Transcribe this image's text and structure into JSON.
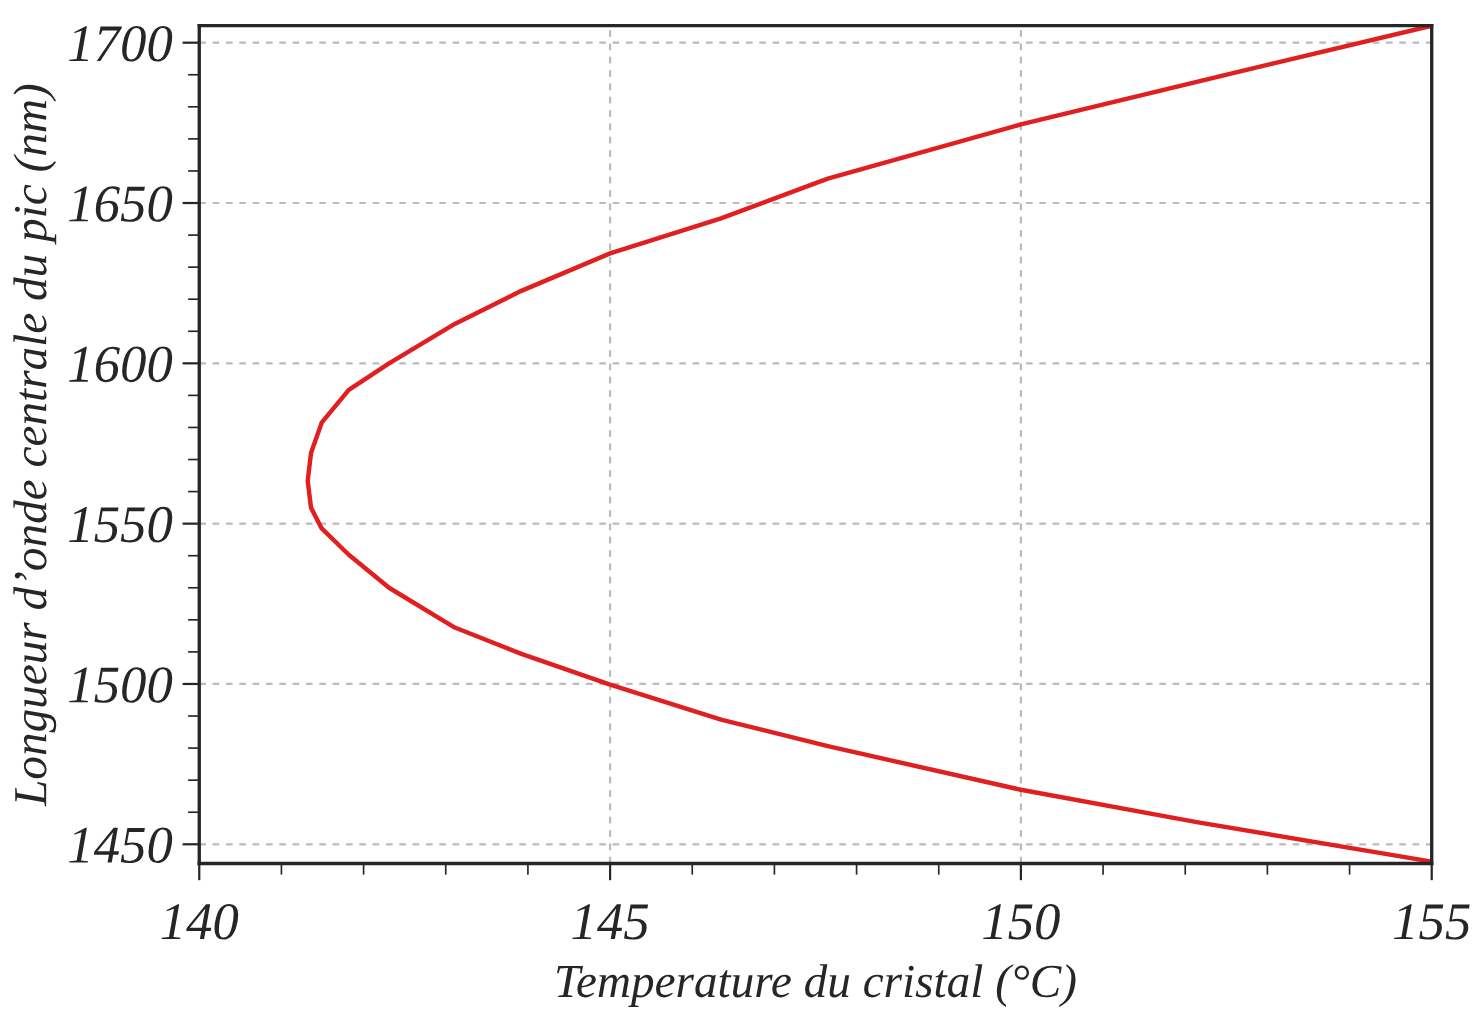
{
  "chart_data": {
    "type": "line",
    "xlabel": "Temperature du cristal (°C)",
    "ylabel": "Longueur d’onde centrale du pic (nm)",
    "series": [
      {
        "color": "#e02020",
        "x": [
          155,
          152.14,
          150,
          147.65,
          146.35,
          145,
          143.92,
          143.11,
          142.31,
          141.82,
          141.49,
          141.36,
          141.32,
          141.36,
          141.49,
          141.82,
          142.31,
          143.11,
          143.92,
          145,
          146.35,
          147.65,
          150,
          152.14,
          155
        ],
        "values": [
          1444.6,
          1456.9,
          1467,
          1480.6,
          1488.9,
          1499.8,
          1509.4,
          1517.6,
          1530,
          1540.3,
          1548.5,
          1555,
          1563.3,
          1572,
          1581.5,
          1591.7,
          1600,
          1612.3,
          1622.6,
          1634.3,
          1645.2,
          1657.6,
          1674.5,
          1687.8,
          1705.3
        ]
      }
    ],
    "xlim": [
      140,
      155
    ],
    "xticks": [
      140,
      145,
      150,
      155
    ],
    "ylim": [
      1444,
      1705.3
    ],
    "yticks": [
      1450,
      1500,
      1550,
      1600,
      1650,
      1700
    ],
    "grid": true,
    "marker": "none",
    "line_style": "solid"
  }
}
